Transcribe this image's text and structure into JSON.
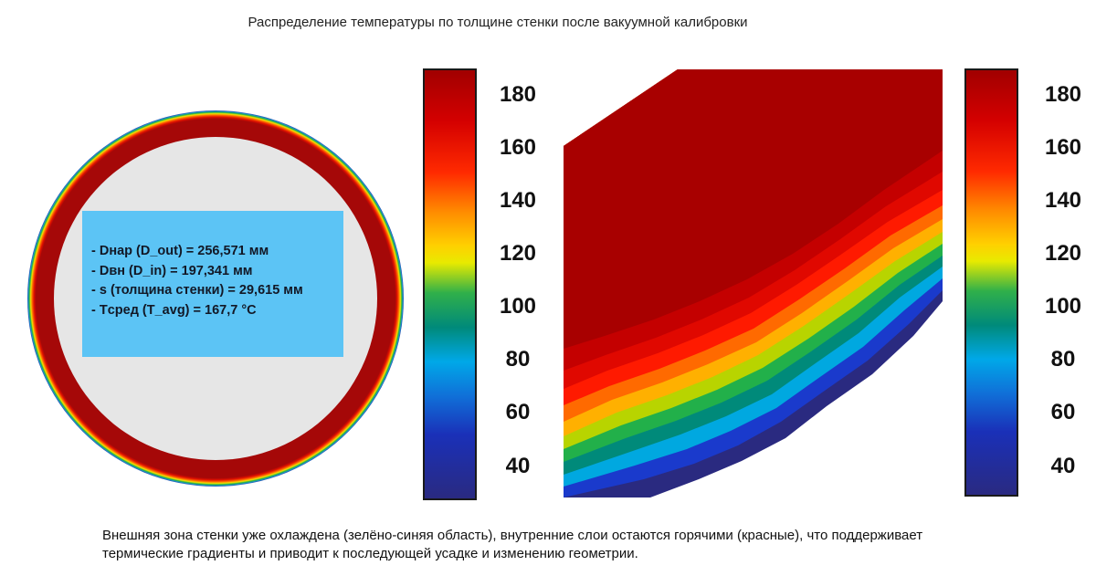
{
  "title": "Распределение температуры по толщине стенки после вакуумной калибровки",
  "info": {
    "items": [
      "Dнар (D_out) = 256,571 мм",
      "Dвн (D_in) = 197,341 мм",
      "s (толщина стенки) = 29,615 мм",
      "Tсред (T_avg) = 167,7 °C"
    ]
  },
  "colorbar": {
    "ticks": [
      "180",
      "160",
      "140",
      "120",
      "100",
      "80",
      "60",
      "40"
    ],
    "colors": [
      "#a80000",
      "#ff1a00",
      "#ff9a00",
      "#f5e600",
      "#22b04a",
      "#00a8e0",
      "#1a3acc",
      "#2a2a80"
    ]
  },
  "caption": {
    "lines": [
      "Внешняя зона стенки уже охлаждена (зелёно-синяя область), внутренние слои остаются горячими (красные), что поддерживает",
      "термические градиенты и приводит к последующей усадке и изменению геометрии."
    ]
  }
}
